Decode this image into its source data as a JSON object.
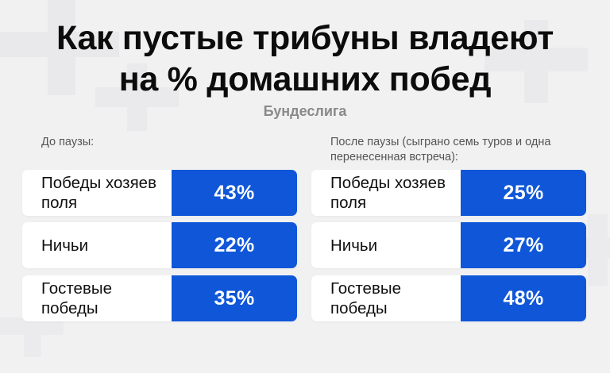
{
  "colors": {
    "background": "#f1f1f2",
    "accent": "#0f57d8",
    "row_background": "#ffffff"
  },
  "title_lines": [
    "Как пустые трибуны владеют",
    "на % домашних побед"
  ],
  "subtitle": "Бундеслига",
  "chart_data": {
    "type": "table",
    "title": "Как пустые трибуны владеют на % домашних побед",
    "subtitle": "Бундеслига",
    "unit": "%",
    "categories": [
      "Победы хозяев поля",
      "Ничьи",
      "Гостевые победы"
    ],
    "series": [
      {
        "name": "До паузы:",
        "values": [
          43,
          22,
          35
        ],
        "display": [
          "43%",
          "22%",
          "35%"
        ]
      },
      {
        "name": "После паузы (сыграно семь туров и одна перенесенная встреча):",
        "values": [
          25,
          27,
          48
        ],
        "display": [
          "25%",
          "27%",
          "48%"
        ]
      }
    ]
  }
}
